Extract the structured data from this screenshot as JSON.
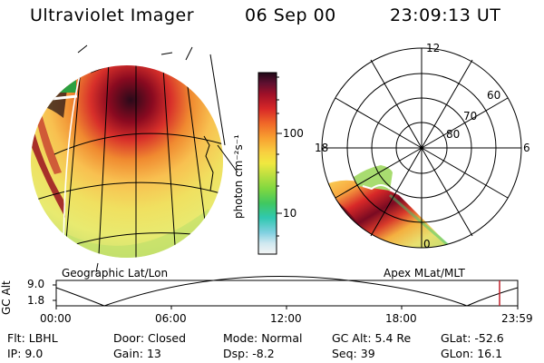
{
  "header": {
    "title": "Ultraviolet Imager",
    "date": "06 Sep 00",
    "time": "23:09:13 UT"
  },
  "colorbar": {
    "unit_label": "photon cm⁻²s⁻¹",
    "ticks": [
      "100",
      "10"
    ]
  },
  "left_panel": {
    "caption": "Geographic Lat/Lon"
  },
  "right_panel": {
    "caption": "Apex MLat/MLT",
    "mlt_labels": [
      "12",
      "18",
      "6",
      "0"
    ],
    "mlat_labels": [
      "60",
      "70",
      "80"
    ]
  },
  "altitude_plot": {
    "ylabel": "GC Alt",
    "yticks": [
      "9.0",
      "1.8"
    ],
    "xticks": [
      "00:00",
      "06:00",
      "12:00",
      "18:00",
      "23:59"
    ],
    "marker_color": "#c0202a"
  },
  "info": {
    "row1": [
      {
        "key": "Flt:",
        "value": "LBHL"
      },
      {
        "key": "Door:",
        "value": "Closed"
      },
      {
        "key": "Mode:",
        "value": "Normal"
      },
      {
        "key": "GC Alt:",
        "value": "5.4 Re"
      },
      {
        "key": "GLat:",
        "value": "-52.6"
      }
    ],
    "row2": [
      {
        "key": "IP:",
        "value": "9.0"
      },
      {
        "key": "Gain:",
        "value": "13"
      },
      {
        "key": "Dsp:",
        "value": "-8.2"
      },
      {
        "key": "Seq:",
        "value": "39"
      },
      {
        "key": "GLon:",
        "value": "16.1"
      }
    ]
  }
}
